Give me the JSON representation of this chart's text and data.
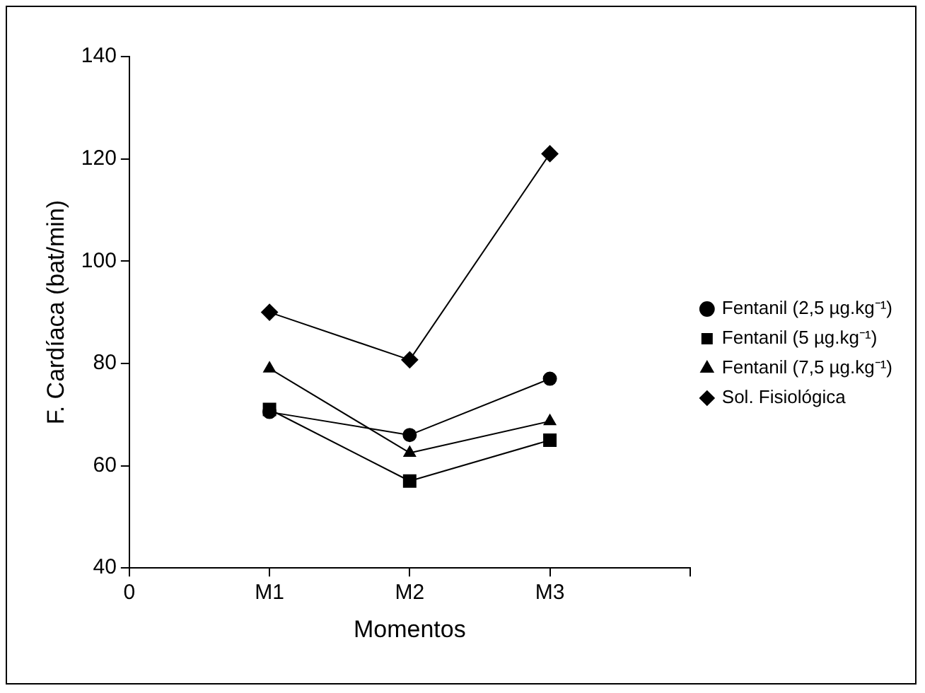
{
  "chart_data": {
    "type": "line",
    "xlabel": "Momentos",
    "ylabel": "F. Cardíaca (bat/min)",
    "categories": [
      "0",
      "M1",
      "M2",
      "M3",
      null
    ],
    "ylim": [
      40,
      140
    ],
    "yticks": [
      40,
      60,
      80,
      100,
      120,
      140
    ],
    "grid": false,
    "legend": "right",
    "line_style": "solid",
    "series": [
      {
        "name": "Fentanil (2,5 µg.kg⁻¹)",
        "color": "#000000",
        "marker": "circle",
        "values": [
          null,
          70.5,
          66,
          77,
          null
        ]
      },
      {
        "name": "Fentanil (5 µg.kg⁻¹)",
        "color": "#000000",
        "marker": "square",
        "values": [
          null,
          71,
          57,
          65,
          null
        ]
      },
      {
        "name": "Fentanil (7,5 µg.kg⁻¹)",
        "color": "#000000",
        "marker": "triangle",
        "values": [
          null,
          79,
          62.5,
          68.7,
          null
        ]
      },
      {
        "name": "Sol. Fisiológica",
        "color": "#000000",
        "marker": "diamond",
        "values": [
          null,
          90,
          80.7,
          121,
          null
        ]
      }
    ]
  }
}
